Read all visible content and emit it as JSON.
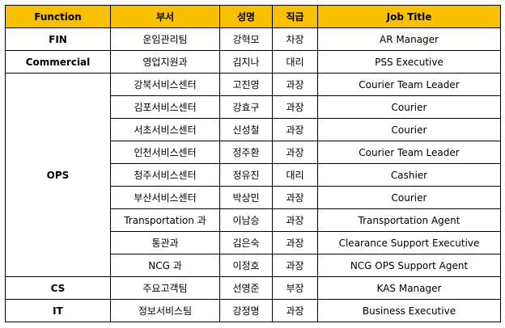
{
  "headers": [
    "Function",
    "부서",
    "성명",
    "직급",
    "Job Title"
  ],
  "rows": [
    {
      "function": "FIN",
      "dept": "운임관리팀",
      "name": "강혁모",
      "rank": "차장",
      "title": "AR Manager"
    },
    {
      "function": "Commercial",
      "dept": "영업지원과",
      "name": "김지나",
      "rank": "대리",
      "title": "PSS Executive"
    },
    {
      "function": "OPS",
      "dept": "강북서비스센터",
      "name": "고진영",
      "rank": "과장",
      "title": "Courier Team Leader"
    },
    {
      "function": "",
      "dept": "김포서비스센터",
      "name": "강효구",
      "rank": "과장",
      "title": "Courier"
    },
    {
      "function": "",
      "dept": "서초서비스센터",
      "name": "신성철",
      "rank": "과장",
      "title": "Courier"
    },
    {
      "function": "",
      "dept": "인천서비스센터",
      "name": "정주환",
      "rank": "과장",
      "title": "Courier Team Leader"
    },
    {
      "function": "",
      "dept": "청주서비스센터",
      "name": "정유진",
      "rank": "대리",
      "title": "Cashier"
    },
    {
      "function": "",
      "dept": "부산서비스센터",
      "name": "박상민",
      "rank": "과장",
      "title": "Courier"
    },
    {
      "function": "",
      "dept": "Transportation 과",
      "name": "이남승",
      "rank": "과장",
      "title": "Transportation Agent"
    },
    {
      "function": "",
      "dept": "통관과",
      "name": "김은숙",
      "rank": "과장",
      "title": "Clearance Support Executive"
    },
    {
      "function": "",
      "dept": "NCG 과",
      "name": "이정호",
      "rank": "과장",
      "title": "NCG OPS Support Agent"
    },
    {
      "function": "CS",
      "dept": "주요고객팀",
      "name": "선영준",
      "rank": "부장",
      "title": "KAS Manager"
    },
    {
      "function": "IT",
      "dept": "정보서비스팀",
      "name": "강정명",
      "rank": "과장",
      "title": "Business Executive"
    }
  ],
  "accent_color": "#f9c000"
}
